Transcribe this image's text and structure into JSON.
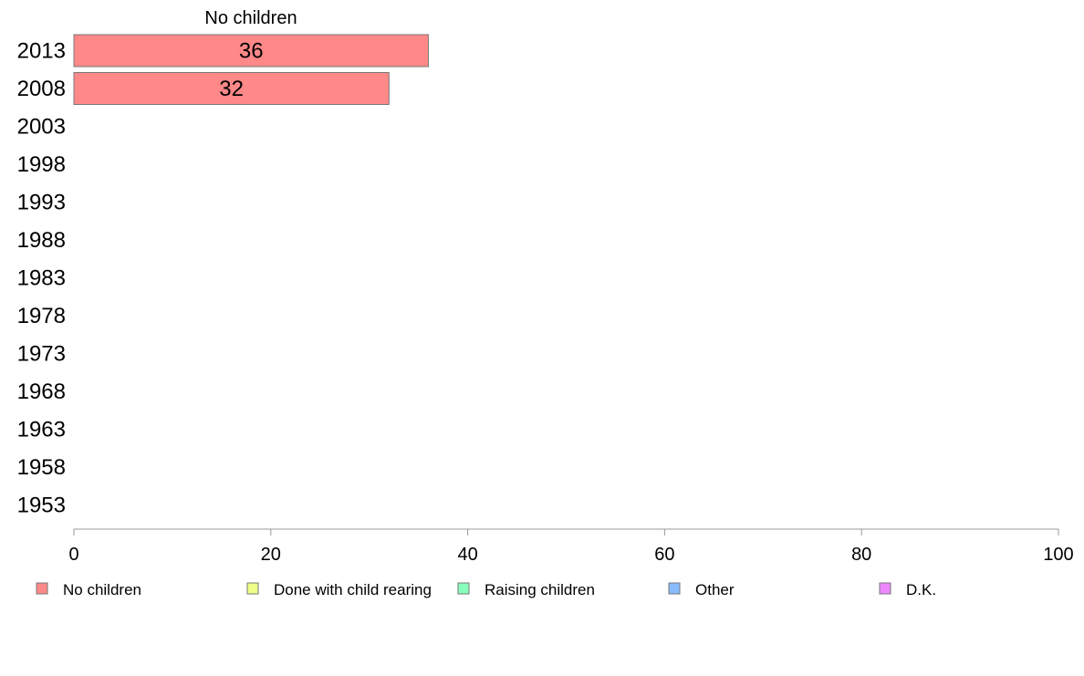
{
  "chart_data": {
    "type": "bar",
    "orientation": "horizontal",
    "stacked": true,
    "categories": [
      "2013",
      "2008",
      "2003",
      "1998",
      "1993",
      "1988",
      "1983",
      "1978",
      "1973",
      "1968",
      "1963",
      "1958",
      "1953"
    ],
    "series": [
      {
        "name": "No children",
        "values": [
          36,
          32,
          null,
          null,
          null,
          null,
          null,
          null,
          null,
          null,
          null,
          null,
          null
        ]
      },
      {
        "name": "Done with child rearing",
        "values": [
          null,
          null,
          null,
          null,
          null,
          null,
          null,
          null,
          null,
          null,
          null,
          null,
          null
        ]
      },
      {
        "name": "Raising children",
        "values": [
          null,
          null,
          null,
          null,
          null,
          null,
          null,
          null,
          null,
          null,
          null,
          null,
          null
        ]
      },
      {
        "name": "Other",
        "values": [
          null,
          null,
          null,
          null,
          null,
          null,
          null,
          null,
          null,
          null,
          null,
          null,
          null
        ]
      },
      {
        "name": "D.K.",
        "values": [
          null,
          null,
          null,
          null,
          null,
          null,
          null,
          null,
          null,
          null,
          null,
          null,
          null
        ]
      }
    ],
    "data_labels": [
      "36",
      "32"
    ],
    "segment_header": "No children",
    "xlim": [
      0,
      100
    ],
    "x_ticks": [
      0,
      20,
      40,
      60,
      80,
      100
    ],
    "grid": false,
    "legend_position": "bottom",
    "colors": {
      "No children": "#ff8888",
      "Done with child rearing": "#eeff88",
      "Raising children": "#88ffbb",
      "Other": "#88bbff",
      "D.K.": "#ee88ff",
      "bar_edge": "#777777",
      "axis": "#999999"
    }
  }
}
